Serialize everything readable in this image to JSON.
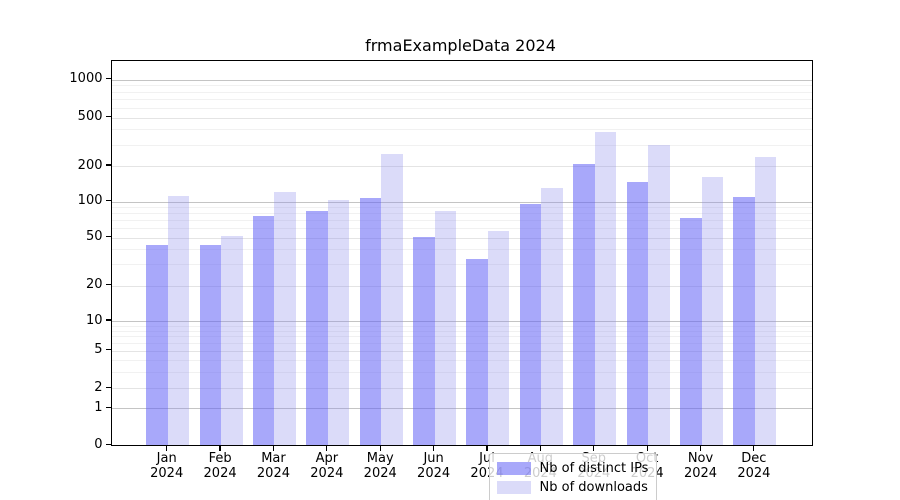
{
  "title": "frmaExampleData 2024",
  "chart_data": {
    "type": "bar",
    "title": "frmaExampleData 2024",
    "categories": [
      "Jan 2024",
      "Feb 2024",
      "Mar 2024",
      "Apr 2024",
      "May 2024",
      "Jun 2024",
      "Jul 2024",
      "Aug 2024",
      "Sep 2024",
      "Oct 2024",
      "Nov 2024",
      "Dec 2024"
    ],
    "months": [
      "Jan",
      "Feb",
      "Mar",
      "Apr",
      "May",
      "Jun",
      "Jul",
      "Aug",
      "Sep",
      "Oct",
      "Nov",
      "Dec"
    ],
    "year": "2024",
    "series": [
      {
        "name": "Nb of distinct IPs",
        "color": "#6161f6",
        "opacity": 0.55,
        "values": [
          43,
          43,
          76,
          83,
          107,
          50,
          33,
          96,
          205,
          147,
          72,
          108
        ]
      },
      {
        "name": "Nb of downloads",
        "color": "#8787eb",
        "opacity": 0.3,
        "values": [
          112,
          51,
          120,
          103,
          250,
          83,
          57,
          130,
          380,
          298,
          162,
          238
        ]
      }
    ],
    "yscale": "symlog",
    "y_ticks": [
      0,
      1,
      2,
      5,
      10,
      20,
      50,
      100,
      200,
      500,
      1000
    ],
    "ylim": [
      0,
      1300
    ],
    "grid": true,
    "legend_position": "lower center",
    "grid_major_color": "#c4c4c4",
    "grid_labeled_color": "#e4e4e4",
    "grid_minor_color": "#f1f1f1"
  }
}
